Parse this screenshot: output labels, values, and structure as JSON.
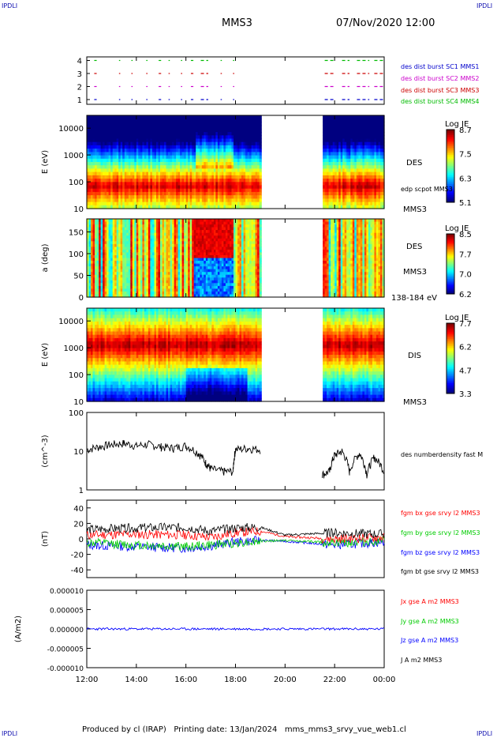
{
  "header": {
    "corner_left_top": "IPDLI",
    "corner_right_top": "IPDLI",
    "corner_left_bottom": "IPDLI",
    "corner_right_bottom": "IPDLI",
    "spacecraft": "MMS3",
    "datetime": "07/Nov/2020 12:00"
  },
  "footer": {
    "text": "Produced by cl (IRAP)   Printing date: 13/Jan/2024   mms_mms3_srvy_vue_web1.cl"
  },
  "colors": {
    "mms1": "#0000cc",
    "mms2": "#cc00cc",
    "mms3": "#cc0000",
    "mms4": "#00bb00",
    "bx": "#ff0000",
    "by": "#00cc00",
    "bz": "#0000ff",
    "bt": "#000000"
  },
  "time_axis": {
    "ticks": [
      "12:00",
      "14:00",
      "16:00",
      "18:00",
      "20:00",
      "22:00",
      "00:00"
    ],
    "hours": [
      12,
      14,
      16,
      18,
      20,
      22,
      24
    ],
    "range_hours": [
      12,
      24
    ]
  },
  "chart_data": [
    {
      "panel": "burst-availability",
      "type": "scatter",
      "y_ticks": [
        "4",
        "3",
        "2",
        "1"
      ],
      "series": [
        {
          "name": "des dist burst SC1 MMS1",
          "level": 1,
          "color": "#0000cc",
          "segments_hours": [
            [
              12.3,
              12.4
            ],
            [
              13.3,
              13.35
            ],
            [
              13.8,
              13.85
            ],
            [
              14.4,
              14.45
            ],
            [
              14.9,
              15.0
            ],
            [
              15.3,
              15.35
            ],
            [
              15.8,
              15.85
            ],
            [
              16.2,
              16.3
            ],
            [
              16.6,
              16.9
            ],
            [
              17.4,
              17.45
            ],
            [
              17.9,
              17.95
            ],
            [
              21.6,
              22.0
            ],
            [
              22.3,
              22.6
            ],
            [
              22.9,
              23.4
            ],
            [
              23.6,
              24.0
            ]
          ]
        },
        {
          "name": "des dist burst SC2 MMS2",
          "level": 2,
          "color": "#cc00cc",
          "segments_hours": [
            [
              12.3,
              12.4
            ],
            [
              13.3,
              13.35
            ],
            [
              13.8,
              13.85
            ],
            [
              14.4,
              14.45
            ],
            [
              14.9,
              15.0
            ],
            [
              15.3,
              15.35
            ],
            [
              15.8,
              15.85
            ],
            [
              16.2,
              16.3
            ],
            [
              16.6,
              16.9
            ],
            [
              17.4,
              17.45
            ],
            [
              17.9,
              17.95
            ],
            [
              21.6,
              22.0
            ],
            [
              22.3,
              22.6
            ],
            [
              22.9,
              23.4
            ],
            [
              23.6,
              24.0
            ]
          ]
        },
        {
          "name": "des dist burst SC3 MMS3",
          "level": 3,
          "color": "#cc0000",
          "segments_hours": [
            [
              12.3,
              12.4
            ],
            [
              13.3,
              13.35
            ],
            [
              13.8,
              13.85
            ],
            [
              14.4,
              14.45
            ],
            [
              14.9,
              15.0
            ],
            [
              15.3,
              15.35
            ],
            [
              15.8,
              15.85
            ],
            [
              16.2,
              16.3
            ],
            [
              16.6,
              16.9
            ],
            [
              17.4,
              17.45
            ],
            [
              17.9,
              17.95
            ],
            [
              21.6,
              22.0
            ],
            [
              22.3,
              22.6
            ],
            [
              22.9,
              23.4
            ],
            [
              23.6,
              24.0
            ]
          ]
        },
        {
          "name": "des dist burst SC4 MMS4",
          "level": 4,
          "color": "#00bb00",
          "segments_hours": [
            [
              12.3,
              12.4
            ],
            [
              13.3,
              13.35
            ],
            [
              13.8,
              13.85
            ],
            [
              14.4,
              14.45
            ],
            [
              14.9,
              15.0
            ],
            [
              15.3,
              15.35
            ],
            [
              15.8,
              15.85
            ],
            [
              16.2,
              16.3
            ],
            [
              16.6,
              16.9
            ],
            [
              17.4,
              17.45
            ],
            [
              17.9,
              17.95
            ],
            [
              21.6,
              22.0
            ],
            [
              22.3,
              22.6
            ],
            [
              22.9,
              23.4
            ],
            [
              23.6,
              24.0
            ]
          ]
        }
      ]
    },
    {
      "panel": "des-energy-spectrogram",
      "type": "heatmap",
      "ylabel": "E (eV)",
      "y_scale": "log",
      "ylim": [
        10,
        30000
      ],
      "y_ticks": [
        "10000",
        "1000",
        "100",
        "10"
      ],
      "y_tick_values": [
        10000,
        1000,
        100,
        10
      ],
      "colorbar": {
        "title": "Log JE",
        "labels": [
          "8.7",
          "7.5",
          "6.3",
          "5.1"
        ],
        "min": 5.1,
        "max": 8.7
      },
      "species": "DES",
      "spacecraft": "MMS3",
      "overlay_label": "edp scpot MMS3",
      "data_gap_hours": [
        19.0,
        21.5
      ],
      "peak_log_energy_eV": 1.85
    },
    {
      "panel": "des-pitch-angle",
      "type": "heatmap",
      "ylabel": "a (deg)",
      "ylim": [
        0,
        180
      ],
      "y_ticks": [
        "150",
        "100",
        "50",
        "0"
      ],
      "y_tick_values": [
        150,
        100,
        50,
        0
      ],
      "colorbar": {
        "title": "Log JE",
        "labels": [
          "8.5",
          "7.7",
          "7.0",
          "6.2"
        ],
        "min": 6.2,
        "max": 8.5
      },
      "species": "DES",
      "spacecraft": "MMS3",
      "energy_range": "138-184 eV",
      "data_gap_hours": [
        19.0,
        21.5
      ]
    },
    {
      "panel": "dis-energy-spectrogram",
      "type": "heatmap",
      "ylabel": "E (eV)",
      "y_scale": "log",
      "ylim": [
        10,
        30000
      ],
      "y_ticks": [
        "10000",
        "1000",
        "100",
        "10"
      ],
      "y_tick_values": [
        10000,
        1000,
        100,
        10
      ],
      "colorbar": {
        "title": "Log JE",
        "labels": [
          "7.7",
          "6.2",
          "4.7",
          "3.3"
        ],
        "min": 3.3,
        "max": 7.7
      },
      "species": "DIS",
      "spacecraft": "MMS3",
      "data_gap_hours": [
        19.0,
        21.5
      ],
      "peak_log_energy_eV": 3.1
    },
    {
      "panel": "density",
      "type": "line",
      "ylabel": "(cm^-3)",
      "y_scale": "log",
      "ylim": [
        1,
        100
      ],
      "y_ticks": [
        "100",
        "10",
        "1"
      ],
      "y_tick_values": [
        100,
        10,
        1
      ],
      "series": [
        {
          "name": "des numberdensity fast M",
          "color": "#000000",
          "x_hours": [
            12.0,
            12.5,
            13.0,
            13.5,
            14.0,
            14.5,
            15.0,
            15.5,
            16.0,
            16.5,
            16.8,
            17.0,
            17.5,
            17.9,
            18.0,
            18.5,
            19.0,
            21.5,
            21.8,
            22.0,
            22.3,
            22.6,
            23.0,
            23.3,
            23.6,
            24.0
          ],
          "y_values": [
            11,
            13,
            15,
            16,
            14,
            15,
            13,
            12,
            14,
            9,
            5,
            3.5,
            3,
            3,
            11,
            12,
            11,
            2.5,
            3,
            8,
            10,
            3,
            9,
            2.5,
            7,
            3
          ]
        }
      ]
    },
    {
      "panel": "magnetic-field",
      "type": "line",
      "ylabel": "(nT)",
      "ylim": [
        -50,
        50
      ],
      "y_ticks": [
        "40",
        "20",
        "0",
        "-20",
        "-40"
      ],
      "y_tick_values": [
        40,
        20,
        0,
        -20,
        -40
      ],
      "series": [
        {
          "name": "fgm bx gse srvy l2 MMS3",
          "color": "#ff0000",
          "x_hours": [
            12,
            14,
            16,
            17,
            18,
            19,
            20,
            22,
            24
          ],
          "y_values": [
            5,
            6,
            5,
            2,
            8,
            10,
            3,
            0,
            2
          ]
        },
        {
          "name": "fgm by gse srvy l2 MMS3",
          "color": "#00cc00",
          "x_hours": [
            12,
            14,
            16,
            17,
            18,
            19,
            20,
            22,
            24
          ],
          "y_values": [
            -5,
            -8,
            -10,
            -8,
            -5,
            -3,
            -2,
            -5,
            -3
          ]
        },
        {
          "name": "fgm bz gse srvy l2 MMS3",
          "color": "#0000ff",
          "x_hours": [
            12,
            14,
            16,
            17,
            18,
            19,
            20,
            22,
            24
          ],
          "y_values": [
            -8,
            -10,
            -12,
            -9,
            -4,
            -2,
            -3,
            -8,
            -4
          ]
        },
        {
          "name": "fgm bt gse srvy l2 MMS3",
          "color": "#000000",
          "x_hours": [
            12,
            14,
            16,
            17,
            18,
            19,
            20,
            22,
            24
          ],
          "y_values": [
            12,
            14,
            15,
            10,
            14,
            15,
            5,
            8,
            6
          ]
        }
      ]
    },
    {
      "panel": "current-density",
      "type": "line",
      "ylabel": "(A/m2)",
      "ylim": [
        -1e-05,
        1e-05
      ],
      "y_ticks": [
        "0.000010",
        "0.000005",
        "0.000000",
        "-0.000005",
        "-0.000010"
      ],
      "y_tick_values": [
        1e-05,
        5e-06,
        0,
        -5e-06,
        -1e-05
      ],
      "series": [
        {
          "name": "Jx gse A m2 MMS3",
          "color": "#ff0000"
        },
        {
          "name": "Jy gse A m2 MMS3",
          "color": "#00cc00"
        },
        {
          "name": "Jz gse A m2 MMS3",
          "color": "#0000ff"
        },
        {
          "name": "J A m2 MMS3",
          "color": "#000000"
        }
      ]
    }
  ]
}
